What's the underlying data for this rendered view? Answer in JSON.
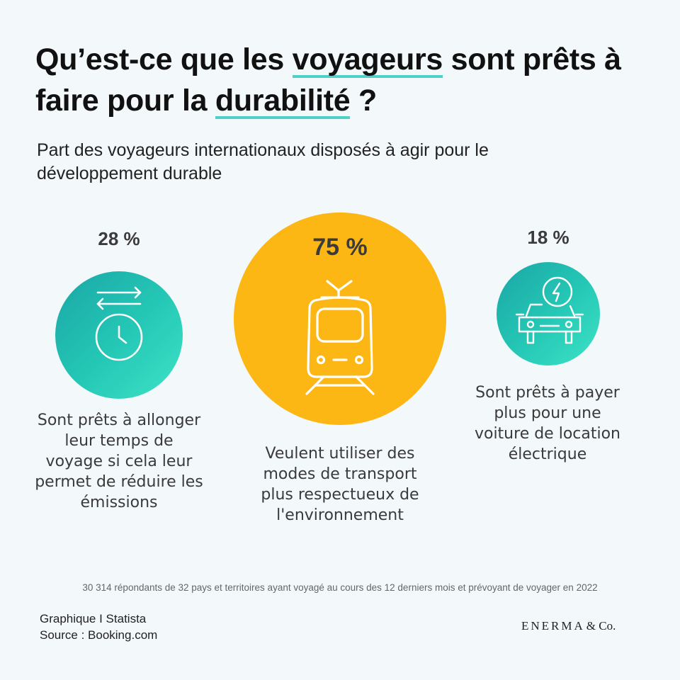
{
  "header": {
    "title_part1": "Qu’est-ce que les ",
    "title_highlight1": "voyageurs",
    "title_part2": " sont prêts à faire pour la ",
    "title_highlight2": "durabilité",
    "title_part3": " ?",
    "subtitle": "Part des voyageurs internationaux disposés à agir pour le développement durable"
  },
  "chart_data": {
    "type": "bubble",
    "items": [
      {
        "value": 28,
        "label": "28 %",
        "text": "Sont prêts à allonger leur temps de voyage si cela leur permet de réduire les émissions",
        "icon": "clock-arrows-icon",
        "color": "#25c9b6"
      },
      {
        "value": 75,
        "label": "75 %",
        "text": "Veulent utiliser des modes de transport plus respectueux de l'environnement",
        "icon": "train-icon",
        "color": "#fdb714"
      },
      {
        "value": 18,
        "label": "18 %",
        "text": "Sont prêts à payer plus pour une voiture de location électrique",
        "icon": "electric-car-icon",
        "color": "#25c9b6"
      }
    ]
  },
  "footer": {
    "note": "30 314 répondants de 32 pays et territoires ayant voyagé au cours des 12 derniers mois et prévoyant de voyager en 2022",
    "credit": "Graphique I Statista",
    "source": "Source : Booking.com",
    "logo": "ENERMA",
    "logo_suffix": "& Co."
  }
}
